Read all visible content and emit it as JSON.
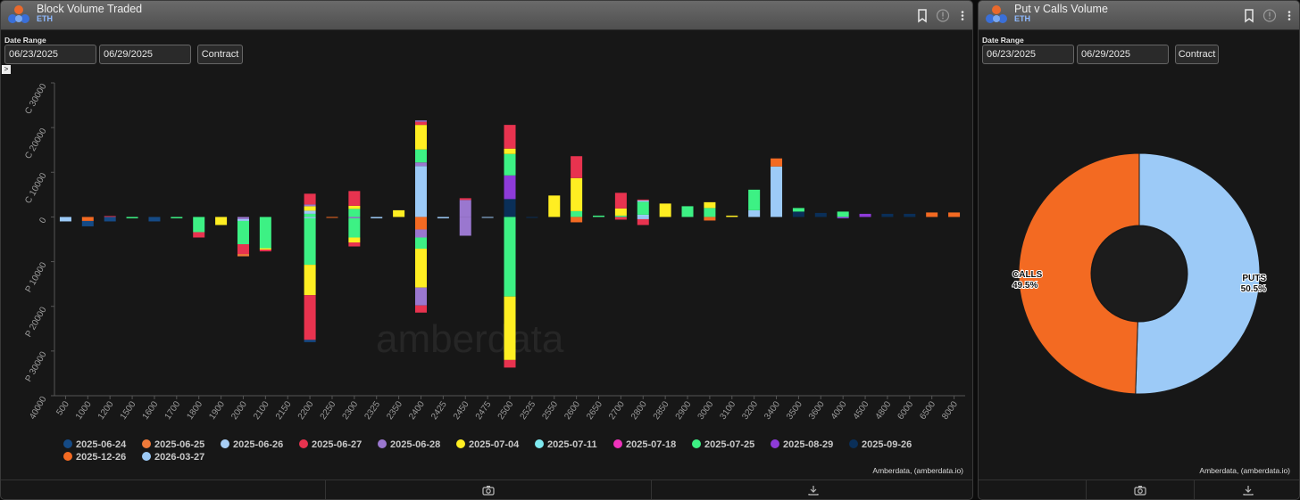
{
  "colors": {
    "2025-06-24": "#154a85",
    "2025-06-25": "#ef7a3a",
    "2025-06-26": "#a8cef5",
    "2025-06-27": "#e8334f",
    "2025-06-28": "#9a77cf",
    "2025-07-04": "#ffee22",
    "2025-07-11": "#7feaf0",
    "2025-07-18": "#ee33bb",
    "2025-07-25": "#3df184",
    "2025-08-29": "#8e3bd9",
    "2025-09-26": "#0a2f58",
    "2025-12-26": "#f36a22",
    "2026-03-27": "#9ccaf7"
  },
  "left": {
    "title": "Block Volume Traded",
    "subtitle": "ETH",
    "date_range_label": "Date Range",
    "start_date": "06/23/2025",
    "end_date": "06/29/2025",
    "contract_label": "Contract",
    "toggle_glyph": ">",
    "credit": "Amberdata, (amberdata.io)",
    "watermark": "amberdata"
  },
  "right": {
    "title": "Put v Calls Volume",
    "subtitle": "ETH",
    "date_range_label": "Date Range",
    "start_date": "06/23/2025",
    "end_date": "06/29/2025",
    "contract_label": "Contract",
    "credit": "Amberdata, (amberdata.io)"
  },
  "chart_data": [
    {
      "type": "bar",
      "stacked": true,
      "categories": [
        "500",
        "1000",
        "1200",
        "1500",
        "1600",
        "1700",
        "1800",
        "1900",
        "2000",
        "2100",
        "2150",
        "2200",
        "2250",
        "2300",
        "2325",
        "2350",
        "2400",
        "2425",
        "2450",
        "2475",
        "2500",
        "2525",
        "2550",
        "2600",
        "2650",
        "2700",
        "2800",
        "2850",
        "2900",
        "3000",
        "3100",
        "3200",
        "3400",
        "3500",
        "3600",
        "4000",
        "4500",
        "4800",
        "6000",
        "6500",
        "8000"
      ],
      "y_ticks": [
        {
          "value": 30000,
          "label": "C 30000"
        },
        {
          "value": 20000,
          "label": "C 20000"
        },
        {
          "value": 10000,
          "label": "C 10000"
        },
        {
          "value": 0,
          "label": "0"
        },
        {
          "value": -10000,
          "label": "P 10000"
        },
        {
          "value": -20000,
          "label": "P 20000"
        },
        {
          "value": -30000,
          "label": "P 30000"
        },
        {
          "value": -40000,
          "label": "P 40000"
        }
      ],
      "ylim": [
        -40000,
        30000
      ],
      "grid": false,
      "legend_position": "bottom",
      "legend": [
        "2025-06-24",
        "2025-06-25",
        "2025-06-26",
        "2025-06-27",
        "2025-06-28",
        "2025-07-04",
        "2025-07-11",
        "2025-07-18",
        "2025-07-25",
        "2025-08-29",
        "2025-09-26",
        "2025-12-26",
        "2026-03-27"
      ],
      "bars": [
        {
          "x": "500",
          "calls": [],
          "puts": [
            [
              "2026-03-27",
              1000
            ]
          ]
        },
        {
          "x": "1000",
          "calls": [],
          "puts": [
            [
              "2025-12-26",
              900
            ],
            [
              "2025-06-24",
              1200
            ]
          ]
        },
        {
          "x": "1200",
          "calls": [
            [
              "2025-06-27",
              200
            ]
          ],
          "puts": [
            [
              "2025-06-24",
              1000
            ]
          ]
        },
        {
          "x": "1500",
          "calls": [],
          "puts": [
            [
              "2025-07-25",
              300
            ]
          ]
        },
        {
          "x": "1600",
          "calls": [],
          "puts": [
            [
              "2025-06-24",
              1000
            ]
          ]
        },
        {
          "x": "1700",
          "calls": [],
          "puts": [
            [
              "2025-07-25",
              300
            ]
          ]
        },
        {
          "x": "1800",
          "calls": [],
          "puts": [
            [
              "2025-07-25",
              3400
            ],
            [
              "2025-06-27",
              1200
            ]
          ]
        },
        {
          "x": "1900",
          "calls": [],
          "puts": [
            [
              "2025-07-04",
              1800
            ]
          ]
        },
        {
          "x": "2000",
          "calls": [],
          "puts": [
            [
              "2025-06-28",
              500
            ],
            [
              "2026-03-27",
              400
            ],
            [
              "2025-07-25",
              5200
            ],
            [
              "2025-06-27",
              2200
            ],
            [
              "2025-06-25",
              500
            ]
          ]
        },
        {
          "x": "2100",
          "calls": [],
          "puts": [
            [
              "2025-07-25",
              7000
            ],
            [
              "2025-07-04",
              300
            ],
            [
              "2025-06-27",
              400
            ]
          ]
        },
        {
          "x": "2150",
          "calls": [],
          "puts": []
        },
        {
          "x": "2200",
          "calls": [
            [
              "2025-07-25",
              700
            ],
            [
              "2026-03-27",
              700
            ],
            [
              "2025-07-04",
              1000
            ],
            [
              "2025-06-28",
              400
            ],
            [
              "2025-06-27",
              2400
            ]
          ],
          "puts": [
            [
              "2026-03-27",
              300
            ],
            [
              "2025-07-25",
              10400
            ],
            [
              "2025-07-04",
              6800
            ],
            [
              "2025-06-27",
              10000
            ],
            [
              "2025-06-24",
              500
            ]
          ]
        },
        {
          "x": "2250",
          "calls": [],
          "puts": [
            [
              "2025-12-26",
              200
            ]
          ]
        },
        {
          "x": "2300",
          "calls": [
            [
              "2025-07-25",
              1800
            ],
            [
              "2025-07-04",
              700
            ],
            [
              "2025-06-27",
              3300
            ]
          ],
          "puts": [
            [
              "2025-06-28",
              300
            ],
            [
              "2025-07-25",
              4300
            ],
            [
              "2025-07-04",
              1100
            ],
            [
              "2025-06-27",
              900
            ]
          ]
        },
        {
          "x": "2325",
          "calls": [],
          "puts": [
            [
              "2026-03-27",
              300
            ]
          ]
        },
        {
          "x": "2350",
          "calls": [
            [
              "2025-07-04",
              1500
            ]
          ],
          "puts": []
        },
        {
          "x": "2400",
          "calls": [
            [
              "2026-03-27",
              11400
            ],
            [
              "2025-06-28",
              800
            ],
            [
              "2025-07-25",
              2900
            ],
            [
              "2025-07-04",
              5500
            ],
            [
              "2025-06-27",
              700
            ],
            [
              "2025-06-28",
              300
            ]
          ],
          "puts": [
            [
              "2025-12-26",
              2800
            ],
            [
              "2025-06-28",
              1800
            ],
            [
              "2025-07-25",
              2500
            ],
            [
              "2025-07-04",
              8700
            ],
            [
              "2025-06-28",
              4000
            ],
            [
              "2025-06-27",
              1600
            ]
          ]
        },
        {
          "x": "2425",
          "calls": [],
          "puts": [
            [
              "2026-03-27",
              300
            ]
          ]
        },
        {
          "x": "2450",
          "calls": [
            [
              "2025-06-28",
              3800
            ],
            [
              "2025-06-27",
              400
            ]
          ],
          "puts": [
            [
              "2025-06-28",
              4200
            ]
          ]
        },
        {
          "x": "2475",
          "calls": [],
          "puts": [
            [
              "2026-03-27",
              200
            ]
          ]
        },
        {
          "x": "2500",
          "calls": [
            [
              "2025-09-26",
              4000
            ],
            [
              "2025-08-29",
              5300
            ],
            [
              "2025-07-25",
              4800
            ],
            [
              "2025-07-04",
              1200
            ],
            [
              "2025-06-27",
              5300
            ]
          ],
          "puts": [
            [
              "2025-07-25",
              17800
            ],
            [
              "2025-07-04",
              14200
            ],
            [
              "2025-06-27",
              1700
            ]
          ]
        },
        {
          "x": "2525",
          "calls": [],
          "puts": [
            [
              "2025-09-26",
              200
            ]
          ]
        },
        {
          "x": "2550",
          "calls": [
            [
              "2025-07-04",
              4800
            ]
          ],
          "puts": []
        },
        {
          "x": "2600",
          "calls": [
            [
              "2025-07-25",
              1300
            ],
            [
              "2025-07-04",
              7400
            ],
            [
              "2025-06-27",
              4900
            ]
          ],
          "puts": [
            [
              "2025-12-26",
              1200
            ]
          ]
        },
        {
          "x": "2650",
          "calls": [
            [
              "2025-07-25",
              300
            ]
          ],
          "puts": []
        },
        {
          "x": "2700",
          "calls": [
            [
              "2025-07-25",
              300
            ],
            [
              "2025-07-04",
              1600
            ],
            [
              "2025-06-27",
              3500
            ]
          ],
          "puts": [
            [
              "2025-06-27",
              600
            ]
          ]
        },
        {
          "x": "2800",
          "calls": [
            [
              "2026-03-27",
              500
            ],
            [
              "2025-07-25",
              2900
            ],
            [
              "2026-03-27",
              300
            ],
            [
              "2025-06-27",
              200
            ]
          ],
          "puts": [
            [
              "2026-03-27",
              500
            ],
            [
              "2025-06-27",
              1300
            ]
          ]
        },
        {
          "x": "2850",
          "calls": [
            [
              "2025-07-04",
              3000
            ]
          ],
          "puts": []
        },
        {
          "x": "2900",
          "calls": [
            [
              "2025-07-25",
              2400
            ]
          ],
          "puts": []
        },
        {
          "x": "3000",
          "calls": [
            [
              "2025-07-25",
              2000
            ],
            [
              "2025-07-04",
              1300
            ]
          ],
          "puts": [
            [
              "2025-12-26",
              800
            ]
          ]
        },
        {
          "x": "3100",
          "calls": [
            [
              "2025-07-04",
              300
            ]
          ],
          "puts": []
        },
        {
          "x": "3200",
          "calls": [
            [
              "2026-03-27",
              1500
            ],
            [
              "2025-07-25",
              4600
            ]
          ],
          "puts": []
        },
        {
          "x": "3400",
          "calls": [
            [
              "2026-03-27",
              11300
            ],
            [
              "2025-12-26",
              1800
            ]
          ],
          "puts": []
        },
        {
          "x": "3500",
          "calls": [
            [
              "2025-09-26",
              1200
            ],
            [
              "2025-07-25",
              800
            ]
          ],
          "puts": []
        },
        {
          "x": "3600",
          "calls": [
            [
              "2025-09-26",
              900
            ]
          ],
          "puts": []
        },
        {
          "x": "4000",
          "calls": [
            [
              "2025-07-25",
              1200
            ]
          ],
          "puts": [
            [
              "2025-08-29",
              300
            ]
          ]
        },
        {
          "x": "4500",
          "calls": [
            [
              "2025-08-29",
              700
            ]
          ],
          "puts": []
        },
        {
          "x": "4800",
          "calls": [
            [
              "2025-09-26",
              700
            ]
          ],
          "puts": []
        },
        {
          "x": "6000",
          "calls": [
            [
              "2025-09-26",
              700
            ]
          ],
          "puts": []
        },
        {
          "x": "6500",
          "calls": [
            [
              "2025-12-26",
              1000
            ]
          ],
          "puts": []
        },
        {
          "x": "8000",
          "calls": [
            [
              "2025-12-26",
              1000
            ]
          ],
          "puts": []
        }
      ]
    },
    {
      "type": "pie",
      "donut": true,
      "slices": [
        {
          "label": "CALLS",
          "value": 49.5,
          "text": "49.5%",
          "color": "#f36a22"
        },
        {
          "label": "PUTS",
          "value": 50.5,
          "text": "50.5%",
          "color": "#9ccaf7"
        }
      ]
    }
  ]
}
